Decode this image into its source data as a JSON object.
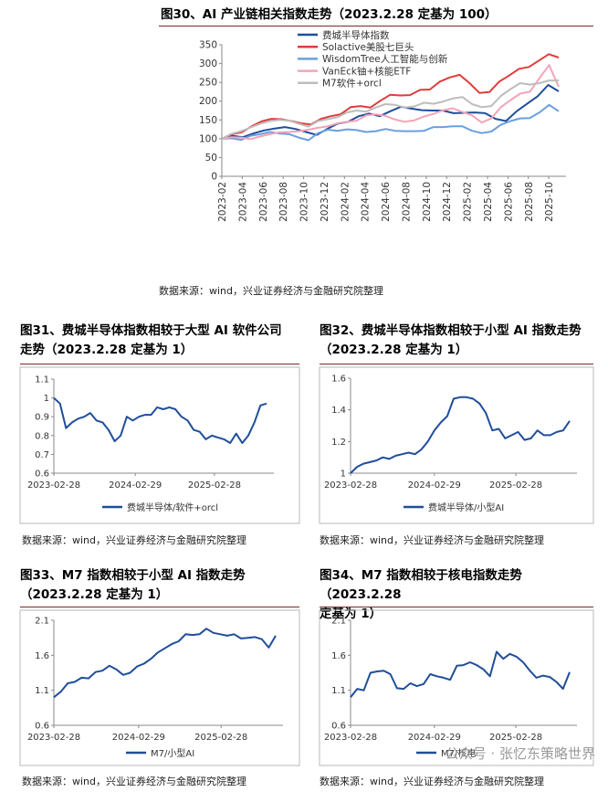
{
  "charts_meta": [
    {
      "title": "图30、AI 产业链相关指数走势（2023.2.28 定基为 100）",
      "source": "数据来源：wind，兴业证券经济与金融研究院整理"
    },
    {
      "title_line1": "图31、费城半导体指数相较于大型 AI 软件公司",
      "title_line2": "走势（2023.2.28 定基为 1）",
      "source": "数据来源：wind，兴业证券经济与金融研究院整理"
    },
    {
      "title_line1": "图32、费城半导体指数相较于小型 AI 指数走势",
      "title_line2": "（2023.2.28 定基为 1）",
      "source": "数据来源：wind，兴业证券经济与金融研究院整理"
    },
    {
      "title_line1": "图33、M7 指数相较于小型 AI 指数走势",
      "title_line2": "（2023.2.28 定基为 1）",
      "source": "数据来源：wind，兴业证券经济与金融研究院整理"
    },
    {
      "title_line1": "图34、M7 指数相较于核电指数走势（2023.2.28",
      "title_line2": "定基为 1）",
      "source": "数据来源：wind，兴业证券经济与金融研究院整理"
    }
  ],
  "watermark": "公众号 · 张忆东策略世界",
  "chart_data": [
    {
      "type": "line",
      "title": "图30、AI 产业链相关指数走势（2023.2.28 定基为 100）",
      "x_ticks": [
        "2023-02",
        "2023-04",
        "2023-06",
        "2023-08",
        "2023-10",
        "2023-12",
        "2024-02",
        "2024-04",
        "2024-06",
        "2024-08",
        "2024-10",
        "2024-12",
        "2025-02",
        "2025-04",
        "2025-06",
        "2025-08",
        "2025-10"
      ],
      "ylim": [
        0,
        350
      ],
      "y_ticks": [
        0,
        50,
        100,
        150,
        200,
        250,
        300,
        350
      ],
      "legend_position": "top-left",
      "series": [
        {
          "name": "费城半导体指数",
          "color": "#1f4e9a",
          "values": [
            100,
            108,
            104,
            114,
            122,
            127,
            131,
            126,
            118,
            110,
            126,
            140,
            145,
            160,
            167,
            160,
            173,
            185,
            180,
            176,
            175,
            175,
            168,
            169,
            170,
            168,
            153,
            147,
            173,
            193,
            213,
            243,
            226
          ]
        },
        {
          "name": "Solactive美股七巨头",
          "color": "#e03c3c",
          "values": [
            100,
            112,
            117,
            133,
            146,
            153,
            152,
            147,
            141,
            138,
            153,
            160,
            165,
            184,
            187,
            183,
            201,
            217,
            215,
            216,
            230,
            231,
            252,
            263,
            270,
            248,
            222,
            224,
            252,
            268,
            286,
            291,
            308,
            325,
            316
          ]
        },
        {
          "name": "WisdomTree人工智能与创新",
          "color": "#6a9fdf",
          "values": [
            100,
            101,
            97,
            108,
            112,
            118,
            114,
            112,
            103,
            96,
            115,
            124,
            121,
            125,
            123,
            118,
            120,
            126,
            121,
            120,
            120,
            121,
            131,
            131,
            133,
            133,
            121,
            115,
            119,
            137,
            147,
            154,
            155,
            170,
            190,
            173
          ]
        },
        {
          "name": "VanEck铀+核能ETF",
          "color": "#f5a3b8",
          "values": [
            100,
            104,
            103,
            99,
            106,
            112,
            117,
            118,
            120,
            124,
            129,
            133,
            141,
            145,
            148,
            162,
            165,
            161,
            151,
            145,
            149,
            159,
            166,
            176,
            181,
            171,
            162,
            143,
            154,
            184,
            203,
            220,
            225,
            261,
            296,
            238
          ]
        },
        {
          "name": "M7软件+orcl",
          "color": "#bdbdbd",
          "values": [
            100,
            113,
            120,
            130,
            140,
            147,
            150,
            148,
            140,
            132,
            147,
            152,
            157,
            170,
            175,
            172,
            183,
            192,
            190,
            183,
            186,
            196,
            193,
            199,
            207,
            211,
            192,
            184,
            187,
            214,
            232,
            248,
            244,
            248,
            255,
            255
          ]
        }
      ]
    },
    {
      "type": "line",
      "title": "图31、费城半导体指数相较于大型 AI 软件公司走势（2023.2.28 定基为 1）",
      "x_ticks": [
        "2023-02-28",
        "2024-02-29",
        "2025-02-28"
      ],
      "ylim": [
        0.6,
        1.1
      ],
      "y_ticks": [
        0.6,
        0.7,
        0.8,
        0.9,
        1,
        1.1
      ],
      "legend_position": "bottom",
      "series": [
        {
          "name": "费城半导体/软件+orcl",
          "color": "#1f4e9a",
          "values": [
            1.0,
            0.97,
            0.84,
            0.87,
            0.89,
            0.9,
            0.92,
            0.88,
            0.87,
            0.83,
            0.77,
            0.8,
            0.9,
            0.88,
            0.9,
            0.91,
            0.91,
            0.95,
            0.94,
            0.95,
            0.94,
            0.9,
            0.88,
            0.83,
            0.82,
            0.78,
            0.8,
            0.79,
            0.78,
            0.76,
            0.81,
            0.76,
            0.8,
            0.87,
            0.96,
            0.97
          ]
        }
      ]
    },
    {
      "type": "line",
      "title": "图32、费城半导体指数相较于小型 AI 指数走势（2023.2.28 定基为 1）",
      "x_ticks": [
        "2023-02-28",
        "2024-02-29",
        "2025-02-28"
      ],
      "ylim": [
        1,
        1.6
      ],
      "y_ticks": [
        1,
        1.2,
        1.4,
        1.6
      ],
      "legend_position": "bottom",
      "series": [
        {
          "name": "费城半导体/小型AI",
          "color": "#1f4e9a",
          "values": [
            1.0,
            1.04,
            1.06,
            1.07,
            1.08,
            1.1,
            1.09,
            1.11,
            1.12,
            1.13,
            1.12,
            1.15,
            1.2,
            1.27,
            1.32,
            1.36,
            1.47,
            1.48,
            1.48,
            1.47,
            1.44,
            1.38,
            1.27,
            1.28,
            1.22,
            1.24,
            1.26,
            1.21,
            1.22,
            1.27,
            1.24,
            1.24,
            1.26,
            1.27,
            1.33
          ]
        }
      ]
    },
    {
      "type": "line",
      "title": "图33、M7 指数相较于小型 AI 指数走势（2023.2.28 定基为 1）",
      "x_ticks": [
        "2023-02-28",
        "2024-02-29",
        "2025-02-28"
      ],
      "ylim": [
        0.6,
        2.1
      ],
      "y_ticks": [
        0.6,
        1.1,
        1.6,
        2.1
      ],
      "legend_position": "bottom",
      "series": [
        {
          "name": "M7/小型AI",
          "color": "#1f4e9a",
          "values": [
            1.0,
            1.08,
            1.2,
            1.22,
            1.28,
            1.27,
            1.36,
            1.38,
            1.45,
            1.4,
            1.32,
            1.35,
            1.44,
            1.48,
            1.55,
            1.64,
            1.7,
            1.76,
            1.8,
            1.9,
            1.89,
            1.9,
            1.98,
            1.92,
            1.9,
            1.88,
            1.9,
            1.84,
            1.85,
            1.86,
            1.83,
            1.71,
            1.88
          ]
        }
      ]
    },
    {
      "type": "line",
      "title": "图34、M7 指数相较于核电指数走势（2023.2.28 定基为 1）",
      "x_ticks": [
        "2023-02-28",
        "2024-02-29",
        "2025-02-28"
      ],
      "ylim": [
        0.6,
        2.1
      ],
      "y_ticks": [
        0.6,
        1.1,
        1.6,
        2.1
      ],
      "legend_position": "bottom",
      "series": [
        {
          "name": "M7/核电",
          "color": "#1f4e9a",
          "values": [
            1.0,
            1.12,
            1.1,
            1.35,
            1.37,
            1.38,
            1.33,
            1.13,
            1.12,
            1.2,
            1.16,
            1.19,
            1.33,
            1.3,
            1.28,
            1.25,
            1.45,
            1.46,
            1.5,
            1.46,
            1.4,
            1.3,
            1.65,
            1.55,
            1.62,
            1.58,
            1.5,
            1.38,
            1.28,
            1.31,
            1.29,
            1.22,
            1.12,
            1.36
          ]
        }
      ]
    }
  ]
}
